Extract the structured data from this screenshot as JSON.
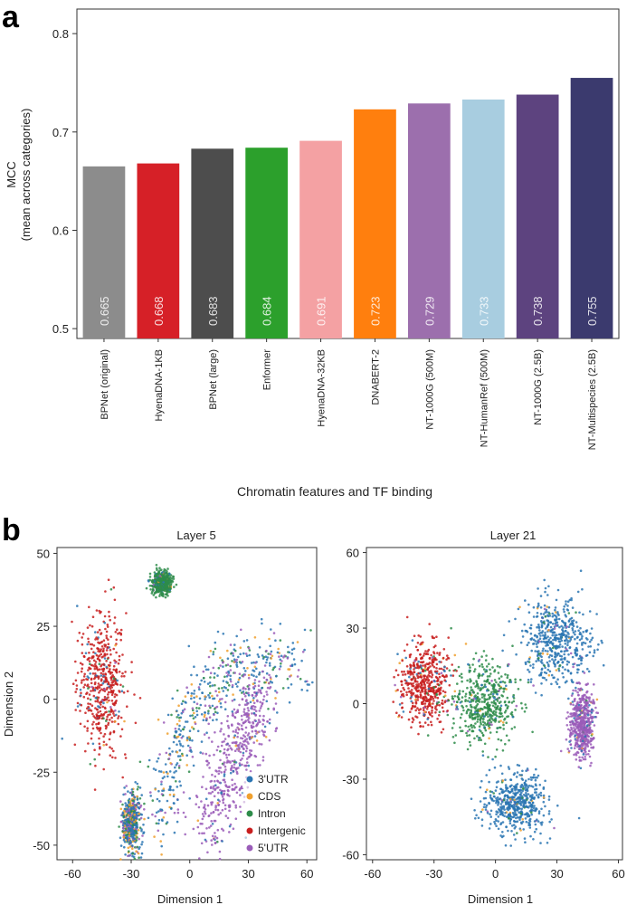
{
  "panels": {
    "a": "a",
    "b": "b"
  },
  "chart_data": [
    {
      "type": "bar",
      "title": "",
      "xlabel": "Chromatin features and TF binding",
      "ylabel": [
        "MCC",
        "(mean across categories)"
      ],
      "ylim": [
        0.49,
        0.825
      ],
      "yticks": [
        0.5,
        0.6,
        0.7,
        0.8
      ],
      "grid": false,
      "categories": [
        "BPNet (original)",
        "HyenaDNA-1KB",
        "BPNet (large)",
        "Enformer",
        "HyenaDNA-32KB",
        "DNABERT-2",
        "NT-1000G (500M)",
        "NT-HumanRef (500M)",
        "NT-1000G (2.5B)",
        "NT-Multispecies (2.5B)"
      ],
      "values": [
        0.665,
        0.668,
        0.683,
        0.684,
        0.691,
        0.723,
        0.729,
        0.733,
        0.738,
        0.755
      ],
      "value_labels": [
        "0.665",
        "0.668",
        "0.683",
        "0.684",
        "0.691",
        "0.723",
        "0.729",
        "0.733",
        "0.738",
        "0.755"
      ],
      "colors": [
        "#8c8c8c",
        "#d62027",
        "#4d4d4d",
        "#2ca02c",
        "#f4a1a3",
        "#ff7f0e",
        "#9c6fad",
        "#a8cde0",
        "#5d437f",
        "#3b3a6e"
      ]
    },
    {
      "type": "scatter",
      "title": "Layer 5",
      "xlabel": "Dimension 1",
      "ylabel": "Dimension 2",
      "xlim": [
        -68,
        65
      ],
      "ylim": [
        -55,
        52
      ],
      "xticks": [
        "-60",
        "-30",
        "0",
        "30",
        "60"
      ],
      "yticks": [
        "50",
        "25",
        "0",
        "-25",
        "-50"
      ],
      "legend": "bottom-right",
      "legend_entries": [
        {
          "name": "3'UTR",
          "color": "#2a75b3"
        },
        {
          "name": "CDS",
          "color": "#f0a02e"
        },
        {
          "name": "Intron",
          "color": "#2e8c4a"
        },
        {
          "name": "Intergenic",
          "color": "#c81e1e"
        },
        {
          "name": "5'UTR",
          "color": "#9a5cb8"
        }
      ],
      "clusters": [
        {
          "category": "Intergenic",
          "center": [
            -45,
            5
          ],
          "spread": [
            10,
            20
          ]
        },
        {
          "category": "Intron",
          "center": [
            -14,
            40
          ],
          "spread": [
            4,
            3
          ]
        },
        {
          "category": "mixed",
          "shape": "arc",
          "from": [
            -15,
            -45
          ],
          "via": [
            0,
            25
          ],
          "to": [
            55,
            10
          ]
        },
        {
          "category": "5'UTR",
          "shape": "arc",
          "from": [
            10,
            -45
          ],
          "via": [
            25,
            -10
          ],
          "to": [
            35,
            0
          ]
        },
        {
          "category": "mixed",
          "center": [
            -30,
            -42
          ],
          "spread": [
            4,
            8
          ]
        }
      ]
    },
    {
      "type": "scatter",
      "title": "Layer 21",
      "xlabel": "Dimension 1",
      "ylabel": "",
      "xlim": [
        -63,
        62
      ],
      "ylim": [
        -62,
        62
      ],
      "xticks": [
        "-60",
        "-30",
        "0",
        "30",
        "60"
      ],
      "yticks": [
        "60",
        "30",
        "0",
        "-30",
        "-60"
      ],
      "clusters": [
        {
          "category": "Intergenic",
          "center": [
            -35,
            8
          ],
          "spread": [
            10,
            14
          ]
        },
        {
          "category": "Intron",
          "center": [
            -5,
            0
          ],
          "spread": [
            14,
            14
          ]
        },
        {
          "category": "3'UTR",
          "center": [
            30,
            25
          ],
          "spread": [
            14,
            14
          ]
        },
        {
          "category": "3'UTR",
          "center": [
            10,
            -40
          ],
          "spread": [
            12,
            10
          ]
        },
        {
          "category": "5'UTR",
          "center": [
            42,
            -8
          ],
          "spread": [
            5,
            12
          ]
        }
      ]
    }
  ]
}
